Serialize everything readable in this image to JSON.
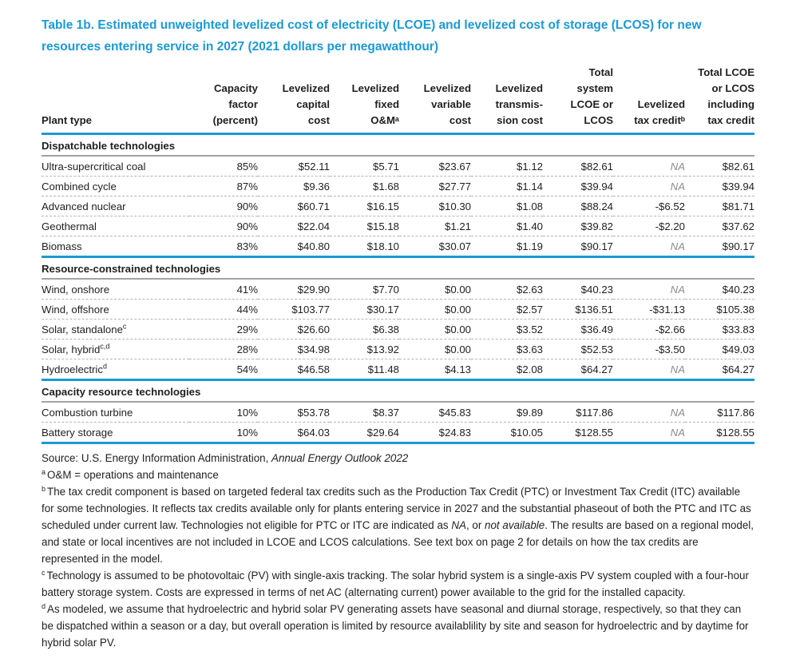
{
  "title": "Table 1b. Estimated unweighted levelized cost of electricity (LCOE) and levelized cost of storage (LCOS) for new resources entering service in 2027 (2021 dollars per megawatthour)",
  "colors": {
    "accent": "#1b99d5",
    "na_text": "#8c8c8c"
  },
  "table": {
    "columns": [
      {
        "label": "Plant type"
      },
      {
        "label": "Capacity\nfactor\n(percent)"
      },
      {
        "label": "Levelized\ncapital\ncost"
      },
      {
        "label": "Levelized\nfixed\nO&Mᵃ"
      },
      {
        "label": "Levelized\nvariable\ncost"
      },
      {
        "label": "Levelized\ntransmis-\nsion cost"
      },
      {
        "label": "Total\nsystem\nLCOE or\nLCOS"
      },
      {
        "label": "Levelized\ntax creditᵇ"
      },
      {
        "label": "Total LCOE\nor LCOS\nincluding\ntax credit"
      }
    ],
    "sections": [
      {
        "header": "Dispatchable technologies",
        "rows": [
          {
            "plant": "Ultra-supercritical coal",
            "values": [
              "85%",
              "$52.11",
              "$5.71",
              "$23.67",
              "$1.12",
              "$82.61",
              "NA",
              "$82.61"
            ]
          },
          {
            "plant": "Combined cycle",
            "values": [
              "87%",
              "$9.36",
              "$1.68",
              "$27.77",
              "$1.14",
              "$39.94",
              "NA",
              "$39.94"
            ]
          },
          {
            "plant": "Advanced nuclear",
            "values": [
              "90%",
              "$60.71",
              "$16.15",
              "$10.30",
              "$1.08",
              "$88.24",
              "-$6.52",
              "$81.71"
            ]
          },
          {
            "plant": "Geothermal",
            "values": [
              "90%",
              "$22.04",
              "$15.18",
              "$1.21",
              "$1.40",
              "$39.82",
              "-$2.20",
              "$37.62"
            ]
          },
          {
            "plant": "Biomass",
            "values": [
              "83%",
              "$40.80",
              "$18.10",
              "$30.07",
              "$1.19",
              "$90.17",
              "NA",
              "$90.17"
            ]
          }
        ]
      },
      {
        "header": "Resource-constrained technologies",
        "rows": [
          {
            "plant": "Wind, onshore",
            "values": [
              "41%",
              "$29.90",
              "$7.70",
              "$0.00",
              "$2.63",
              "$40.23",
              "NA",
              "$40.23"
            ]
          },
          {
            "plant": "Wind, offshore",
            "values": [
              "44%",
              "$103.77",
              "$30.17",
              "$0.00",
              "$2.57",
              "$136.51",
              "-$31.13",
              "$105.38"
            ]
          },
          {
            "plant": "Solar, standalone",
            "sup": "c",
            "values": [
              "29%",
              "$26.60",
              "$6.38",
              "$0.00",
              "$3.52",
              "$36.49",
              "-$2.66",
              "$33.83"
            ]
          },
          {
            "plant": "Solar, hybrid",
            "sup": "c,d",
            "values": [
              "28%",
              "$34.98",
              "$13.92",
              "$0.00",
              "$3.63",
              "$52.53",
              "-$3.50",
              "$49.03"
            ]
          },
          {
            "plant": "Hydroelectric",
            "sup": "d",
            "values": [
              "54%",
              "$46.58",
              "$11.48",
              "$4.13",
              "$2.08",
              "$64.27",
              "NA",
              "$64.27"
            ]
          }
        ]
      },
      {
        "header": "Capacity resource technologies",
        "rows": [
          {
            "plant": "Combustion turbine",
            "values": [
              "10%",
              "$53.78",
              "$8.37",
              "$45.83",
              "$9.89",
              "$117.86",
              "NA",
              "$117.86"
            ]
          },
          {
            "plant": "Battery storage",
            "values": [
              "10%",
              "$64.03",
              "$29.64",
              "$24.83",
              "$10.05",
              "$128.55",
              "NA",
              "$128.55"
            ]
          }
        ]
      }
    ]
  },
  "source": {
    "prefix": "Source: U.S. Energy Information Administration, ",
    "publication": "Annual Energy Outlook 2022"
  },
  "footnotes": [
    {
      "marker": "a",
      "segments": [
        {
          "text": "O&M = operations and maintenance",
          "italic": false
        }
      ]
    },
    {
      "marker": "b",
      "segments": [
        {
          "text": "The tax credit component is based on targeted federal tax credits such as the Production Tax Credit (PTC) or Investment Tax Credit (ITC) available for some technologies. It reflects tax credits available only for plants entering service in 2027 and the substantial phaseout of both the PTC and ITC as scheduled under current law. Technologies not eligible for PTC or ITC are indicated as ",
          "italic": false
        },
        {
          "text": "NA",
          "italic": true
        },
        {
          "text": ", or ",
          "italic": false
        },
        {
          "text": "not available",
          "italic": true
        },
        {
          "text": ". The results are based on a regional model, and state or local incentives are not included in LCOE and LCOS calculations. See text box on page 2 for details on how the tax credits are represented in the model.",
          "italic": false
        }
      ]
    },
    {
      "marker": "c",
      "segments": [
        {
          "text": "Technology is assumed to be photovoltaic (PV) with single-axis tracking. The solar hybrid system is a single-axis PV system coupled with a four-hour battery storage system. Costs are expressed in terms of net AC (alternating current) power available to the grid for the installed capacity.",
          "italic": false
        }
      ]
    },
    {
      "marker": "d",
      "segments": [
        {
          "text": "As modeled, we assume that hydroelectric and hybrid solar PV generating assets have seasonal and diurnal storage, respectively, so that they can be dispatched within a season or a day, but overall operation is limited by resource availablility by site and season for hydroelectric and by daytime for hybrid solar PV.",
          "italic": false
        }
      ]
    }
  ]
}
